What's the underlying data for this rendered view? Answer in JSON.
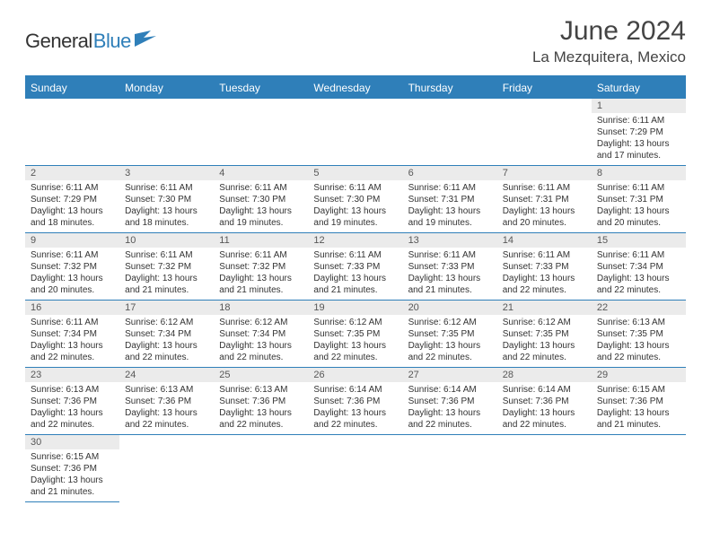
{
  "logo": {
    "text1": "General",
    "text2": "Blue"
  },
  "title": {
    "month": "June 2024",
    "location": "La Mezquitera, Mexico"
  },
  "colors": {
    "header_bg": "#2f7fb9",
    "header_text": "#ffffff",
    "date_bg": "#ebebeb",
    "border": "#2f7fb9"
  },
  "dayNames": [
    "Sunday",
    "Monday",
    "Tuesday",
    "Wednesday",
    "Thursday",
    "Friday",
    "Saturday"
  ],
  "startOffset": 6,
  "daysInMonth": 30,
  "days": {
    "1": {
      "sunrise": "6:11 AM",
      "sunset": "7:29 PM",
      "daylight": "13 hours and 17 minutes."
    },
    "2": {
      "sunrise": "6:11 AM",
      "sunset": "7:29 PM",
      "daylight": "13 hours and 18 minutes."
    },
    "3": {
      "sunrise": "6:11 AM",
      "sunset": "7:30 PM",
      "daylight": "13 hours and 18 minutes."
    },
    "4": {
      "sunrise": "6:11 AM",
      "sunset": "7:30 PM",
      "daylight": "13 hours and 19 minutes."
    },
    "5": {
      "sunrise": "6:11 AM",
      "sunset": "7:30 PM",
      "daylight": "13 hours and 19 minutes."
    },
    "6": {
      "sunrise": "6:11 AM",
      "sunset": "7:31 PM",
      "daylight": "13 hours and 19 minutes."
    },
    "7": {
      "sunrise": "6:11 AM",
      "sunset": "7:31 PM",
      "daylight": "13 hours and 20 minutes."
    },
    "8": {
      "sunrise": "6:11 AM",
      "sunset": "7:31 PM",
      "daylight": "13 hours and 20 minutes."
    },
    "9": {
      "sunrise": "6:11 AM",
      "sunset": "7:32 PM",
      "daylight": "13 hours and 20 minutes."
    },
    "10": {
      "sunrise": "6:11 AM",
      "sunset": "7:32 PM",
      "daylight": "13 hours and 21 minutes."
    },
    "11": {
      "sunrise": "6:11 AM",
      "sunset": "7:32 PM",
      "daylight": "13 hours and 21 minutes."
    },
    "12": {
      "sunrise": "6:11 AM",
      "sunset": "7:33 PM",
      "daylight": "13 hours and 21 minutes."
    },
    "13": {
      "sunrise": "6:11 AM",
      "sunset": "7:33 PM",
      "daylight": "13 hours and 21 minutes."
    },
    "14": {
      "sunrise": "6:11 AM",
      "sunset": "7:33 PM",
      "daylight": "13 hours and 22 minutes."
    },
    "15": {
      "sunrise": "6:11 AM",
      "sunset": "7:34 PM",
      "daylight": "13 hours and 22 minutes."
    },
    "16": {
      "sunrise": "6:11 AM",
      "sunset": "7:34 PM",
      "daylight": "13 hours and 22 minutes."
    },
    "17": {
      "sunrise": "6:12 AM",
      "sunset": "7:34 PM",
      "daylight": "13 hours and 22 minutes."
    },
    "18": {
      "sunrise": "6:12 AM",
      "sunset": "7:34 PM",
      "daylight": "13 hours and 22 minutes."
    },
    "19": {
      "sunrise": "6:12 AM",
      "sunset": "7:35 PM",
      "daylight": "13 hours and 22 minutes."
    },
    "20": {
      "sunrise": "6:12 AM",
      "sunset": "7:35 PM",
      "daylight": "13 hours and 22 minutes."
    },
    "21": {
      "sunrise": "6:12 AM",
      "sunset": "7:35 PM",
      "daylight": "13 hours and 22 minutes."
    },
    "22": {
      "sunrise": "6:13 AM",
      "sunset": "7:35 PM",
      "daylight": "13 hours and 22 minutes."
    },
    "23": {
      "sunrise": "6:13 AM",
      "sunset": "7:36 PM",
      "daylight": "13 hours and 22 minutes."
    },
    "24": {
      "sunrise": "6:13 AM",
      "sunset": "7:36 PM",
      "daylight": "13 hours and 22 minutes."
    },
    "25": {
      "sunrise": "6:13 AM",
      "sunset": "7:36 PM",
      "daylight": "13 hours and 22 minutes."
    },
    "26": {
      "sunrise": "6:14 AM",
      "sunset": "7:36 PM",
      "daylight": "13 hours and 22 minutes."
    },
    "27": {
      "sunrise": "6:14 AM",
      "sunset": "7:36 PM",
      "daylight": "13 hours and 22 minutes."
    },
    "28": {
      "sunrise": "6:14 AM",
      "sunset": "7:36 PM",
      "daylight": "13 hours and 22 minutes."
    },
    "29": {
      "sunrise": "6:15 AM",
      "sunset": "7:36 PM",
      "daylight": "13 hours and 21 minutes."
    },
    "30": {
      "sunrise": "6:15 AM",
      "sunset": "7:36 PM",
      "daylight": "13 hours and 21 minutes."
    }
  },
  "labels": {
    "sunrise": "Sunrise: ",
    "sunset": "Sunset: ",
    "daylight": "Daylight: "
  }
}
